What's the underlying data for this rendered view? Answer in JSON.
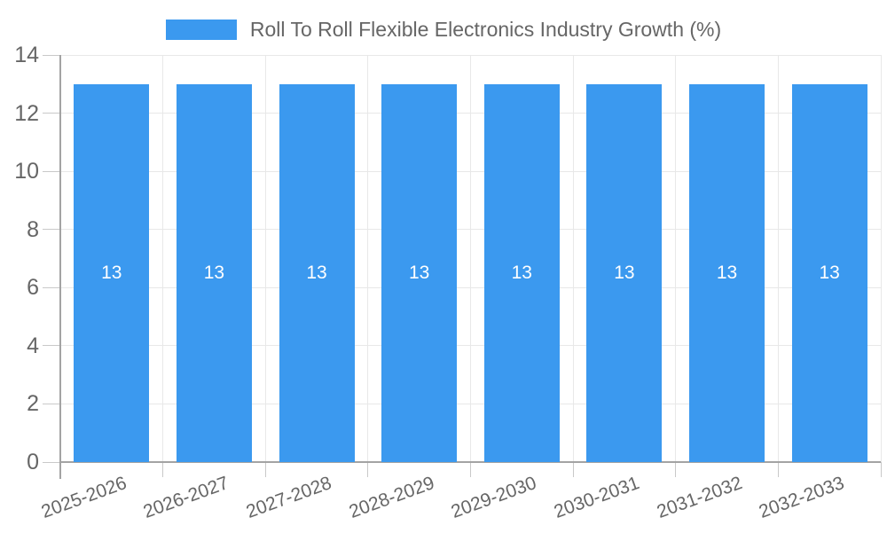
{
  "chart_data": {
    "type": "bar",
    "title": "Roll To Roll Flexible Electronics Industry Growth (%)",
    "legend": {
      "label": "Roll To Roll Flexible Electronics Industry Growth (%)",
      "position": "top"
    },
    "categories": [
      "2025-2026",
      "2026-2027",
      "2027-2028",
      "2028-2029",
      "2029-2030",
      "2030-2031",
      "2031-2032",
      "2032-2033"
    ],
    "series": [
      {
        "name": "Roll To Roll Flexible Electronics Industry Growth (%)",
        "values": [
          13,
          13,
          13,
          13,
          13,
          13,
          13,
          13
        ]
      }
    ],
    "show_values_on_bars": true,
    "xlabel": "",
    "ylabel": "",
    "ylim": [
      0,
      14
    ],
    "yticks": [
      0,
      2,
      4,
      6,
      8,
      10,
      12,
      14
    ],
    "grid": true,
    "x_label_rotation_deg": -20,
    "colors": {
      "bar": "#3B99EF",
      "grid": "#E8E8E8",
      "tick": "#C9C9C9",
      "axis": "#A3A3A3",
      "text": "#666666",
      "value_text": "#FFFFFF",
      "background": "#FFFFFF"
    }
  }
}
